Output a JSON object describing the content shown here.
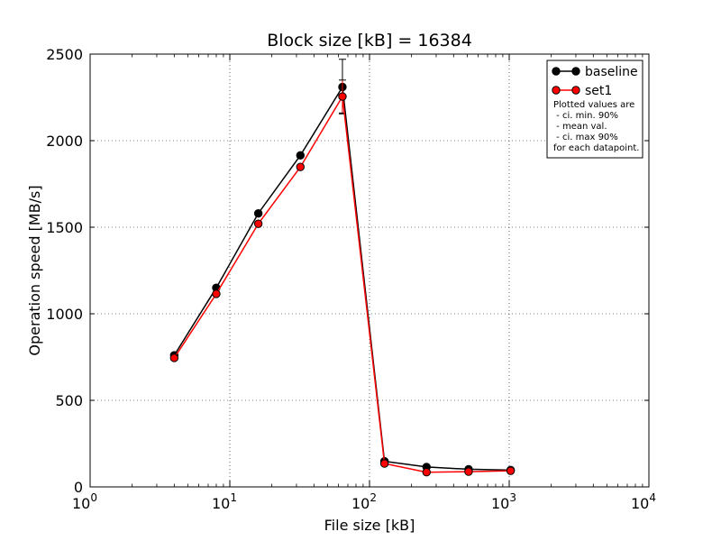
{
  "chart_data": {
    "type": "line",
    "title": "Block size [kB] = 16384",
    "xlabel": "File size [kB]",
    "ylabel": "Operation speed [MB/s]",
    "x_scale": "log",
    "xlim": [
      1,
      10000
    ],
    "ylim": [
      0,
      2500
    ],
    "grid": true,
    "legend_position": "top-right",
    "x_ticks": [
      {
        "base": "10",
        "exp": "0",
        "value": 1
      },
      {
        "base": "10",
        "exp": "1",
        "value": 10
      },
      {
        "base": "10",
        "exp": "2",
        "value": 100
      },
      {
        "base": "10",
        "exp": "3",
        "value": 1000
      },
      {
        "base": "10",
        "exp": "4",
        "value": 10000
      }
    ],
    "y_ticks": [
      {
        "label": "0",
        "value": 0
      },
      {
        "label": "500",
        "value": 500
      },
      {
        "label": "1000",
        "value": 1000
      },
      {
        "label": "1500",
        "value": 1500
      },
      {
        "label": "2000",
        "value": 2000
      },
      {
        "label": "2500",
        "value": 2500
      }
    ],
    "x": [
      4,
      8,
      16,
      32,
      64,
      128,
      256,
      512,
      1024
    ],
    "series": [
      {
        "name": "baseline",
        "color": "#000000",
        "values": [
          760,
          1150,
          1580,
          1915,
          2310,
          148,
          115,
          102,
          97
        ],
        "ci_min": [
          750,
          1140,
          1570,
          1905,
          2155,
          140,
          108,
          96,
          92
        ],
        "ci_max": [
          770,
          1160,
          1590,
          1925,
          2470,
          156,
          122,
          108,
          102
        ]
      },
      {
        "name": "set1",
        "color": "#ff0000",
        "values": [
          745,
          1115,
          1520,
          1848,
          2255,
          135,
          85,
          88,
          93
        ],
        "ci_min": [
          735,
          1105,
          1510,
          1838,
          2160,
          128,
          80,
          83,
          88
        ],
        "ci_max": [
          755,
          1125,
          1530,
          1858,
          2350,
          142,
          90,
          93,
          98
        ]
      }
    ],
    "legend_note": [
      "Plotted values are",
      " - ci. min. 90%",
      " - mean val.",
      " - ci. max 90%",
      "for each datapoint."
    ]
  }
}
